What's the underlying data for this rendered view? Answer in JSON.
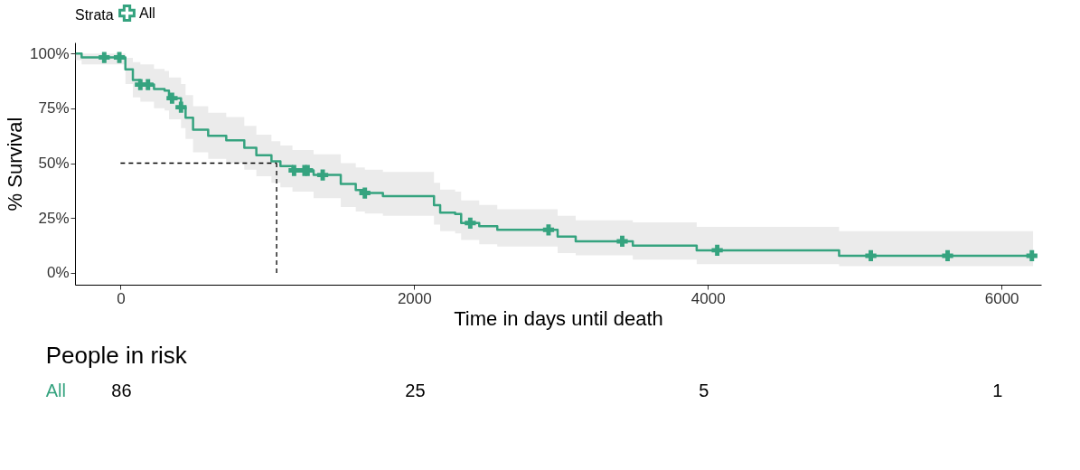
{
  "chart_data": [
    {
      "type": "step",
      "xlabel": "Time in days until death",
      "ylabel": "% Survival",
      "legend_title": "Strata",
      "legend": "top",
      "grid": false,
      "xlim": [
        -310,
        6270
      ],
      "xticks": [
        0,
        2000,
        4000,
        6000
      ],
      "ylim": [
        -5.4,
        105
      ],
      "yticks": [
        {
          "value": 0,
          "label": "0%"
        },
        {
          "value": 25,
          "label": "25%"
        },
        {
          "value": 50,
          "label": "50%"
        },
        {
          "value": 75,
          "label": "75%"
        },
        {
          "value": 100,
          "label": "100%"
        }
      ],
      "series": [
        {
          "name": "All",
          "color": "#35a37f",
          "marker": "none",
          "x": [
            -305,
            -265,
            2,
            33,
            84,
            135,
            228,
            300,
            330,
            412,
            443,
            494,
            597,
            720,
            843,
            925,
            1028,
            1089,
            1171,
            1315,
            1500,
            1602,
            1664,
            1787,
            2105,
            2135,
            2177,
            2279,
            2320,
            2443,
            2566,
            2977,
            3100,
            3489,
            3924,
            4894,
            6215
          ],
          "values": [
            100,
            98.2,
            98.2,
            92.7,
            87.9,
            85.8,
            83.8,
            83.1,
            79.6,
            75.5,
            70.7,
            65.2,
            62.5,
            60.4,
            57,
            53.6,
            50.8,
            48.7,
            46.7,
            44.6,
            40.5,
            37.8,
            36.4,
            35,
            35,
            30.9,
            27.5,
            26.8,
            22.7,
            21.3,
            19.6,
            16.5,
            14.4,
            12.4,
            10.3,
            7.8,
            7.8
          ],
          "lower": [
            97,
            95,
            95,
            86,
            80,
            78,
            75,
            74,
            70,
            66,
            61,
            55,
            52,
            50,
            47,
            44,
            41,
            39,
            37,
            34,
            30,
            28,
            27,
            26,
            26,
            22,
            19,
            18,
            15,
            13,
            12,
            9,
            8,
            6,
            4,
            3,
            3
          ],
          "upper": [
            100,
            100,
            100,
            98,
            96,
            95,
            93,
            92,
            89,
            86,
            81,
            76,
            73,
            71,
            67,
            63,
            60,
            58,
            56,
            54,
            50,
            48,
            47,
            46,
            46,
            41,
            38,
            37,
            33,
            31,
            29,
            26,
            24,
            23,
            21,
            19,
            19
          ]
        },
        {
          "type": "scatter",
          "color": "#35a37f",
          "marker": "cross",
          "x": [
            -111,
            -8,
            135,
            187,
            351,
            412,
            1182,
            1253,
            1274,
            1377,
            1664,
            2382,
            2915,
            3417,
            4064,
            5110,
            5633,
            6207
          ],
          "values": [
            98.2,
            98.2,
            85.8,
            85.8,
            79.6,
            75.5,
            46.7,
            46.7,
            46.7,
            44.6,
            36.4,
            22.7,
            19.6,
            14.4,
            10.3,
            7.8,
            7.8,
            7.8
          ]
        }
      ],
      "ref_lines": [
        {
          "axis": "y",
          "value": 50,
          "color": "#000000",
          "line_style": "dashed"
        },
        {
          "axis": "x",
          "value": 1063,
          "color": "#000000",
          "line_style": "dashed"
        }
      ]
    },
    {
      "type": "other",
      "title": "People in risk",
      "categories": [
        null,
        null,
        null,
        null
      ],
      "data_labels": true,
      "series": [
        {
          "name": "All",
          "color": "#35a37f",
          "values": [
            86,
            25,
            5,
            1
          ]
        }
      ]
    }
  ]
}
